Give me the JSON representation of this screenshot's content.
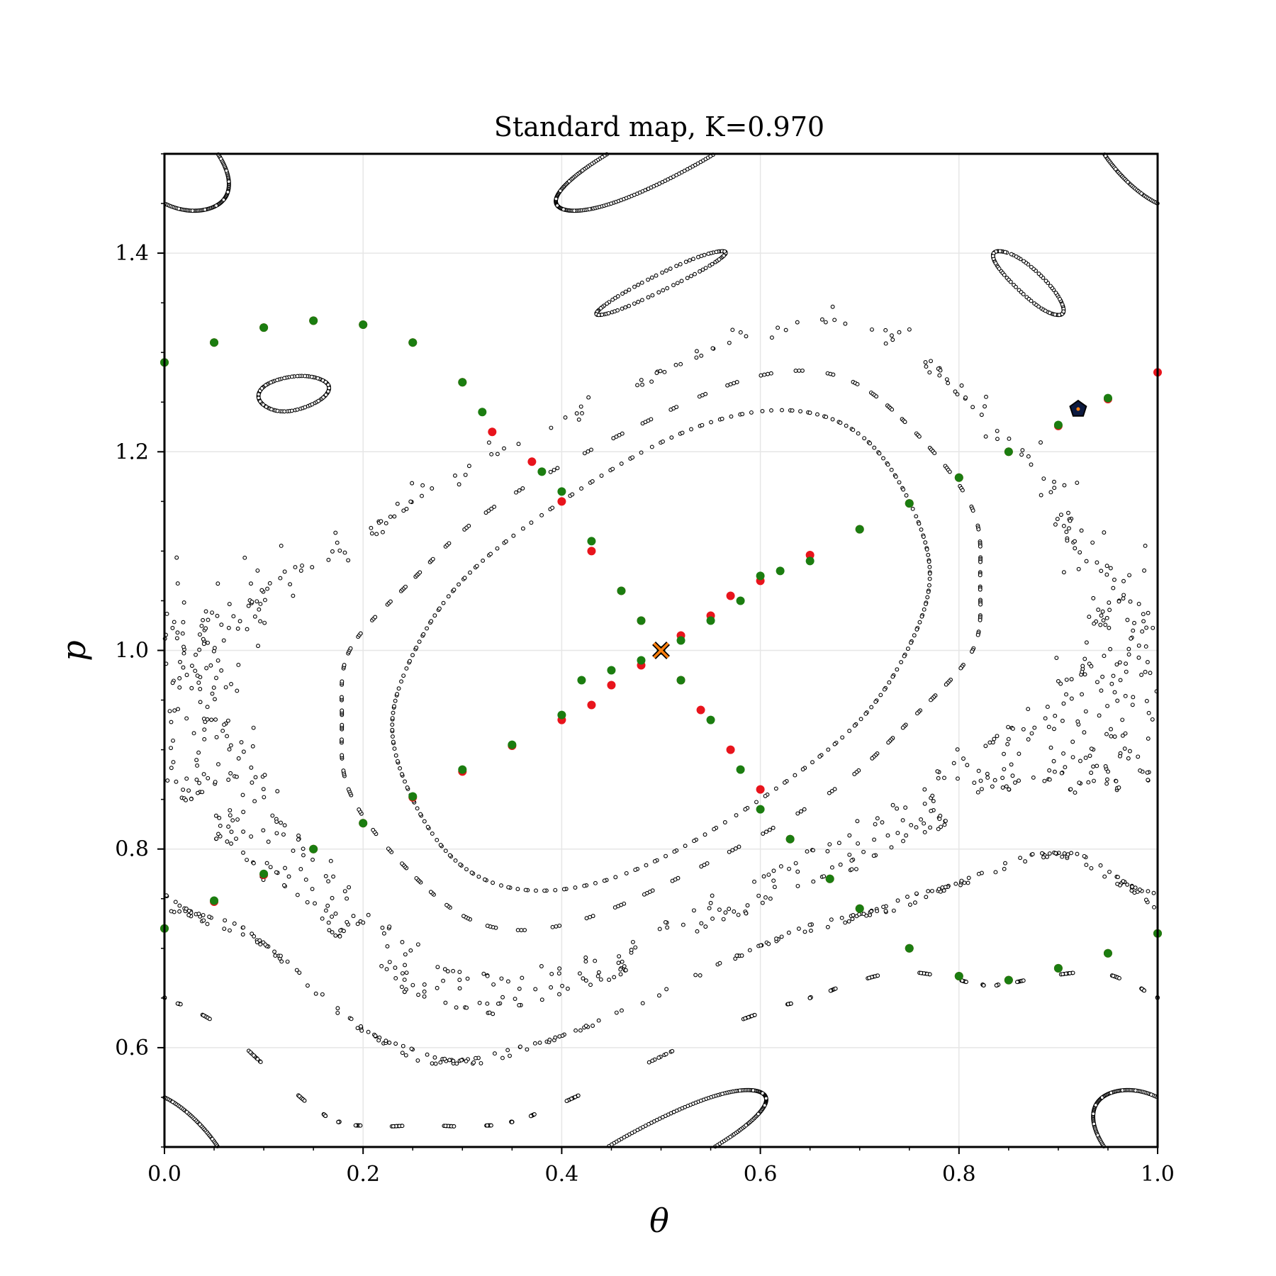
{
  "chart_data": {
    "type": "scatter",
    "title": "Standard map, K=0.970",
    "xlabel": "θ",
    "ylabel": "p",
    "xlim": [
      0.0,
      1.0
    ],
    "ylim": [
      0.5,
      1.5
    ],
    "xticks": [
      "0.0",
      "0.2",
      "0.4",
      "0.6",
      "0.8",
      "1.0"
    ],
    "yticks": [
      "0.6",
      "0.8",
      "1.0",
      "1.2",
      "1.4"
    ],
    "grid": true,
    "K": 0.97,
    "background_orbits": {
      "color": "#000000",
      "description_seeds": [
        [
          0.06,
          0.8
        ],
        [
          0.3,
          1.12
        ],
        [
          0.75,
          1.15
        ],
        [
          0.2,
          0.62
        ],
        [
          0.65,
          0.65
        ],
        [
          0.85,
          1.4
        ],
        [
          0.45,
          1.45
        ],
        [
          0.1,
          1.05
        ],
        [
          0.92,
          0.92
        ],
        [
          0.55,
          0.55
        ]
      ],
      "iterations": 260
    },
    "series": [
      {
        "color": "#e8141c",
        "points": [
          [
            0.0,
            0.72
          ],
          [
            0.05,
            0.747
          ],
          [
            0.1,
            0.774
          ],
          [
            0.15,
            0.8
          ],
          [
            0.2,
            0.826
          ],
          [
            0.25,
            0.852
          ],
          [
            0.3,
            0.878
          ],
          [
            0.35,
            0.904
          ],
          [
            0.4,
            0.93
          ],
          [
            0.43,
            0.945
          ],
          [
            0.45,
            0.965
          ],
          [
            0.48,
            0.985
          ],
          [
            0.5,
            1.0
          ],
          [
            0.52,
            1.015
          ],
          [
            0.55,
            1.035
          ],
          [
            0.57,
            1.055
          ],
          [
            0.6,
            1.07
          ],
          [
            0.65,
            1.096
          ],
          [
            0.7,
            1.122
          ],
          [
            0.75,
            1.148
          ],
          [
            0.8,
            1.174
          ],
          [
            0.85,
            1.2
          ],
          [
            0.9,
            1.226
          ],
          [
            0.95,
            1.253
          ],
          [
            1.0,
            1.28
          ],
          [
            0.0,
            1.29
          ],
          [
            0.05,
            1.31
          ],
          [
            0.1,
            1.325
          ],
          [
            0.15,
            1.332
          ],
          [
            0.2,
            1.328
          ],
          [
            0.25,
            1.31
          ],
          [
            0.3,
            1.27
          ],
          [
            0.33,
            1.22
          ],
          [
            0.37,
            1.19
          ],
          [
            0.4,
            1.15
          ],
          [
            0.43,
            1.1
          ],
          [
            0.46,
            1.06
          ],
          [
            0.48,
            1.03
          ],
          [
            0.5,
            1.0
          ],
          [
            0.52,
            0.97
          ],
          [
            0.54,
            0.94
          ],
          [
            0.57,
            0.9
          ],
          [
            0.6,
            0.86
          ],
          [
            0.63,
            0.81
          ],
          [
            0.67,
            0.77
          ],
          [
            0.7,
            0.74
          ],
          [
            0.75,
            0.7
          ],
          [
            0.8,
            0.672
          ],
          [
            0.85,
            0.668
          ],
          [
            0.9,
            0.68
          ],
          [
            0.95,
            0.695
          ],
          [
            1.0,
            0.715
          ]
        ]
      },
      {
        "color": "#1b7d10",
        "points": [
          [
            0.0,
            0.72
          ],
          [
            0.05,
            0.748
          ],
          [
            0.1,
            0.775
          ],
          [
            0.15,
            0.8
          ],
          [
            0.2,
            0.826
          ],
          [
            0.25,
            0.853
          ],
          [
            0.3,
            0.88
          ],
          [
            0.35,
            0.905
          ],
          [
            0.4,
            0.935
          ],
          [
            0.42,
            0.97
          ],
          [
            0.45,
            0.98
          ],
          [
            0.48,
            0.99
          ],
          [
            0.5,
            1.0
          ],
          [
            0.52,
            1.01
          ],
          [
            0.55,
            1.03
          ],
          [
            0.58,
            1.05
          ],
          [
            0.6,
            1.075
          ],
          [
            0.62,
            1.08
          ],
          [
            0.65,
            1.09
          ],
          [
            0.7,
            1.122
          ],
          [
            0.75,
            1.148
          ],
          [
            0.8,
            1.174
          ],
          [
            0.85,
            1.2
          ],
          [
            0.9,
            1.227
          ],
          [
            0.95,
            1.254
          ],
          [
            0.0,
            1.29
          ],
          [
            0.05,
            1.31
          ],
          [
            0.1,
            1.325
          ],
          [
            0.15,
            1.332
          ],
          [
            0.2,
            1.328
          ],
          [
            0.25,
            1.31
          ],
          [
            0.3,
            1.27
          ],
          [
            0.32,
            1.24
          ],
          [
            0.38,
            1.18
          ],
          [
            0.4,
            1.16
          ],
          [
            0.43,
            1.11
          ],
          [
            0.46,
            1.06
          ],
          [
            0.48,
            1.03
          ],
          [
            0.5,
            1.0
          ],
          [
            0.52,
            0.97
          ],
          [
            0.55,
            0.93
          ],
          [
            0.58,
            0.88
          ],
          [
            0.6,
            0.84
          ],
          [
            0.63,
            0.81
          ],
          [
            0.67,
            0.77
          ],
          [
            0.7,
            0.74
          ],
          [
            0.75,
            0.7
          ],
          [
            0.8,
            0.672
          ],
          [
            0.85,
            0.668
          ],
          [
            0.9,
            0.68
          ],
          [
            0.95,
            0.695
          ],
          [
            1.0,
            0.715
          ]
        ]
      }
    ],
    "markers": [
      {
        "kind": "x",
        "x": 0.5,
        "y": 1.0,
        "color": "#ff7f0e"
      },
      {
        "kind": "pentagon",
        "x": 0.92,
        "y": 1.243,
        "color": "#0c1a40"
      }
    ]
  }
}
